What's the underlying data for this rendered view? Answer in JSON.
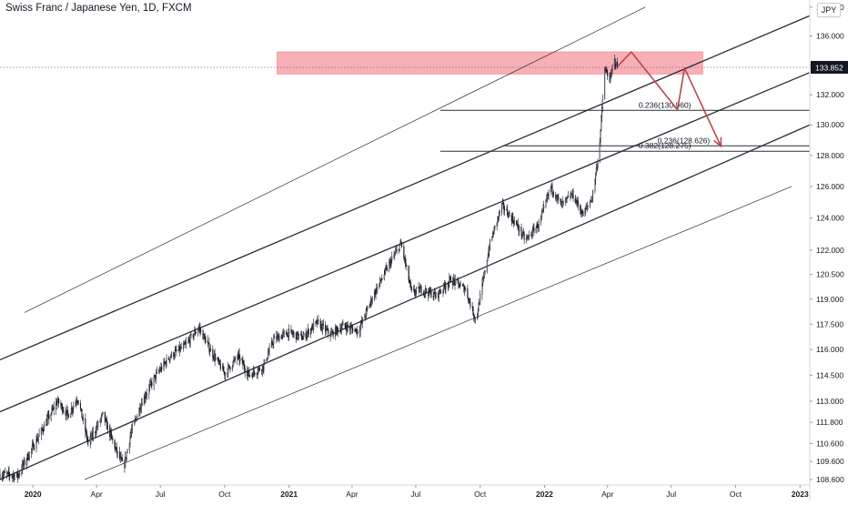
{
  "header": {
    "symbol_title": "Swiss Franc / Japanese Yen, 1D, FXCM",
    "currency_badge": "JPY"
  },
  "colors": {
    "background": "#ffffff",
    "candle": "#131722",
    "channel_line": "#2a2e39",
    "resistance_zone": "#f7a1a8",
    "arrow": "#b5494f",
    "price_tag": "#131722",
    "axis_text": "#131722"
  },
  "chart_data": {
    "type": "candlestick",
    "title": "Swiss Franc / Japanese Yen, 1D, FXCM",
    "ylim": [
      108.3,
      138.5
    ],
    "xlim": [
      "2019-11-15",
      "2023-01-15"
    ],
    "y_axis_position": "right",
    "y_scale": "log",
    "grid": false,
    "y_tick_labels": [
      "108.600",
      "109.600",
      "110.600",
      "111.800",
      "113.000",
      "114.500",
      "116.000",
      "117.500",
      "119.000",
      "120.500",
      "122.000",
      "124.000",
      "126.000",
      "128.000",
      "130.000",
      "132.000",
      "134.000",
      "136.000",
      "138.000"
    ],
    "y_ticks": [
      108.6,
      109.6,
      110.6,
      111.8,
      113.0,
      114.5,
      116.0,
      117.5,
      119.0,
      120.5,
      122.0,
      124.0,
      126.0,
      128.0,
      130.0,
      132.0,
      134.0,
      136.0,
      138.0
    ],
    "x_ticks": [
      {
        "label": "2020",
        "date": "2020-01-01",
        "bold": true
      },
      {
        "label": "Apr",
        "date": "2020-04-01",
        "bold": false
      },
      {
        "label": "Jul",
        "date": "2020-07-01",
        "bold": false
      },
      {
        "label": "Oct",
        "date": "2020-10-01",
        "bold": false
      },
      {
        "label": "2021",
        "date": "2021-01-01",
        "bold": true
      },
      {
        "label": "Apr",
        "date": "2021-04-01",
        "bold": false
      },
      {
        "label": "Jul",
        "date": "2021-07-01",
        "bold": false
      },
      {
        "label": "Oct",
        "date": "2021-10-01",
        "bold": false
      },
      {
        "label": "2022",
        "date": "2022-01-01",
        "bold": true
      },
      {
        "label": "Apr",
        "date": "2022-04-01",
        "bold": false
      },
      {
        "label": "Jul",
        "date": "2022-07-01",
        "bold": false
      },
      {
        "label": "Oct",
        "date": "2022-10-01",
        "bold": false
      },
      {
        "label": "2023",
        "date": "2023-01-01",
        "bold": true
      }
    ],
    "last_price": {
      "label": "133.852",
      "value": 133.852
    },
    "price_path": [
      [
        "2019-11-15",
        108.9
      ],
      [
        "2019-12-10",
        108.8
      ],
      [
        "2019-12-25",
        109.9
      ],
      [
        "2020-01-20",
        111.8
      ],
      [
        "2020-02-05",
        113.0
      ],
      [
        "2020-02-20",
        112.2
      ],
      [
        "2020-03-05",
        113.2
      ],
      [
        "2020-03-20",
        110.6
      ],
      [
        "2020-04-10",
        112.2
      ],
      [
        "2020-05-01",
        110.0
      ],
      [
        "2020-05-10",
        109.3
      ],
      [
        "2020-05-20",
        111.2
      ],
      [
        "2020-06-05",
        113.0
      ],
      [
        "2020-06-25",
        114.5
      ],
      [
        "2020-07-15",
        115.6
      ],
      [
        "2020-08-05",
        116.2
      ],
      [
        "2020-08-25",
        117.3
      ],
      [
        "2020-09-10",
        116.0
      ],
      [
        "2020-10-01",
        114.6
      ],
      [
        "2020-10-20",
        115.6
      ],
      [
        "2020-11-05",
        114.5
      ],
      [
        "2020-11-25",
        115.0
      ],
      [
        "2020-12-10",
        116.6
      ],
      [
        "2020-12-31",
        117.0
      ],
      [
        "2021-01-20",
        116.7
      ],
      [
        "2021-02-10",
        117.6
      ],
      [
        "2021-03-01",
        116.9
      ],
      [
        "2021-03-20",
        117.4
      ],
      [
        "2021-04-10",
        117.1
      ],
      [
        "2021-05-01",
        119.2
      ],
      [
        "2021-05-25",
        121.2
      ],
      [
        "2021-06-10",
        122.4
      ],
      [
        "2021-06-25",
        119.4
      ],
      [
        "2021-07-10",
        119.6
      ],
      [
        "2021-07-30",
        119.2
      ],
      [
        "2021-08-20",
        120.2
      ],
      [
        "2021-09-10",
        119.6
      ],
      [
        "2021-09-25",
        117.7
      ],
      [
        "2021-10-15",
        122.4
      ],
      [
        "2021-11-01",
        124.8
      ],
      [
        "2021-11-20",
        123.7
      ],
      [
        "2021-12-05",
        122.6
      ],
      [
        "2021-12-25",
        123.7
      ],
      [
        "2022-01-10",
        126.0
      ],
      [
        "2022-01-25",
        124.8
      ],
      [
        "2022-02-10",
        125.5
      ],
      [
        "2022-02-25",
        124.2
      ],
      [
        "2022-03-10",
        125.3
      ],
      [
        "2022-03-20",
        128.3
      ],
      [
        "2022-03-28",
        133.7
      ],
      [
        "2022-04-05",
        133.0
      ],
      [
        "2022-04-10",
        134.4
      ],
      [
        "2022-04-15",
        133.9
      ]
    ],
    "channel_lines": [
      {
        "from": [
          "2019-12-20",
          118.2
        ],
        "to": [
          "2022-05-25",
          138.0
        ],
        "style": "thin"
      },
      {
        "from": [
          "2019-11-15",
          115.4
        ],
        "to": [
          "2023-01-15",
          137.4
        ],
        "style": "bold"
      },
      {
        "from": [
          "2019-11-15",
          112.4
        ],
        "to": [
          "2023-01-15",
          133.5
        ],
        "style": "bold"
      },
      {
        "from": [
          "2019-11-15",
          108.6
        ],
        "to": [
          "2023-01-15",
          130.0
        ],
        "style": "bold"
      },
      {
        "from": [
          "2020-03-15",
          108.6
        ],
        "to": [
          "2022-12-20",
          126.0
        ],
        "style": "thin"
      }
    ],
    "resistance_zone": {
      "from": "2020-12-15",
      "to": "2022-08-15",
      "low": 133.4,
      "high": 134.9
    },
    "horizontal_levels": [
      {
        "from": "2021-08-05",
        "to": "2023-01-15",
        "value": 130.96,
        "label": "0.236(130.960)"
      },
      {
        "from": "2021-08-05",
        "to": "2023-01-15",
        "value": 128.275,
        "label": "0.382(128.275)"
      },
      {
        "from": "2021-11-05",
        "to": "2023-01-15",
        "value": 128.626,
        "label": "0.236(128.626)"
      }
    ],
    "projection_arrow": [
      [
        "2022-04-15",
        133.9
      ],
      [
        "2022-05-05",
        134.9
      ],
      [
        "2022-07-10",
        131.0
      ],
      [
        "2022-07-20",
        133.8
      ],
      [
        "2022-09-10",
        128.6
      ]
    ]
  }
}
